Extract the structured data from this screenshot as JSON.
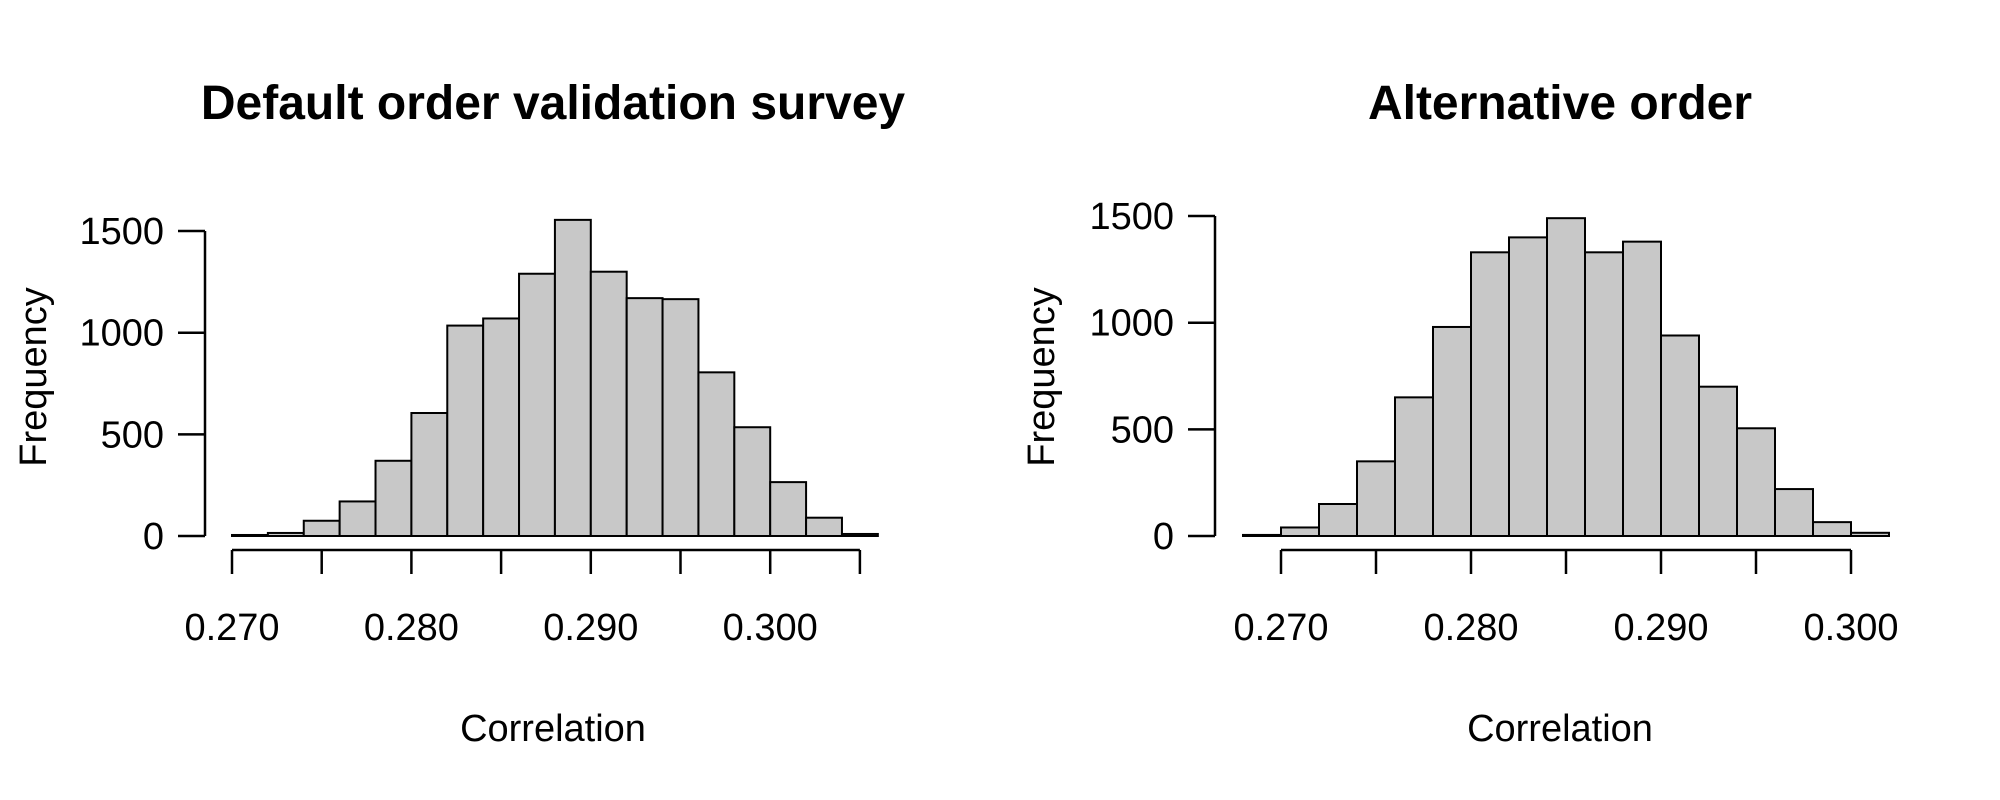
{
  "style": {
    "bar_fill": "#c8c8c8",
    "bar_stroke": "#000000",
    "axis_color": "#000000",
    "background": "#ffffff"
  },
  "chart_data": [
    {
      "type": "bar",
      "title": "Default order validation survey",
      "xlabel": "Correlation",
      "ylabel": "Frequency",
      "bin_width": 0.002,
      "bin_start": 0.27,
      "values": [
        5,
        15,
        75,
        170,
        370,
        605,
        1035,
        1070,
        1290,
        1555,
        1300,
        1170,
        1165,
        805,
        535,
        265,
        90,
        10
      ],
      "x_ticks": [
        0.27,
        0.275,
        0.28,
        0.285,
        0.29,
        0.295,
        0.3,
        0.305
      ],
      "x_tick_labels": [
        "0.270",
        "0.280",
        "0.290",
        "0.300"
      ],
      "x_tick_label_values": [
        0.27,
        0.28,
        0.29,
        0.3
      ],
      "y_ticks": [
        0,
        500,
        1000,
        1500
      ],
      "y_tick_labels": [
        "0",
        "500",
        "1000",
        "1500"
      ],
      "xlim": [
        0.27,
        0.306
      ],
      "ylim": [
        0,
        1600
      ],
      "grid": false,
      "legend": "none"
    },
    {
      "type": "bar",
      "title": "Alternative order",
      "xlabel": "Correlation",
      "ylabel": "Frequency",
      "bin_width": 0.002,
      "bin_start": 0.268,
      "values": [
        5,
        40,
        150,
        350,
        650,
        980,
        1330,
        1400,
        1490,
        1330,
        1380,
        940,
        700,
        505,
        220,
        65,
        15
      ],
      "x_ticks": [
        0.27,
        0.275,
        0.28,
        0.285,
        0.29,
        0.295,
        0.3
      ],
      "x_tick_labels": [
        "0.270",
        "0.280",
        "0.290",
        "0.300"
      ],
      "x_tick_label_values": [
        0.27,
        0.28,
        0.29,
        0.3
      ],
      "y_ticks": [
        0,
        500,
        1000,
        1500
      ],
      "y_tick_labels": [
        "0",
        "500",
        "1000",
        "1500"
      ],
      "xlim": [
        0.268,
        0.302
      ],
      "ylim": [
        0,
        1550
      ],
      "grid": false,
      "legend": "none"
    }
  ]
}
